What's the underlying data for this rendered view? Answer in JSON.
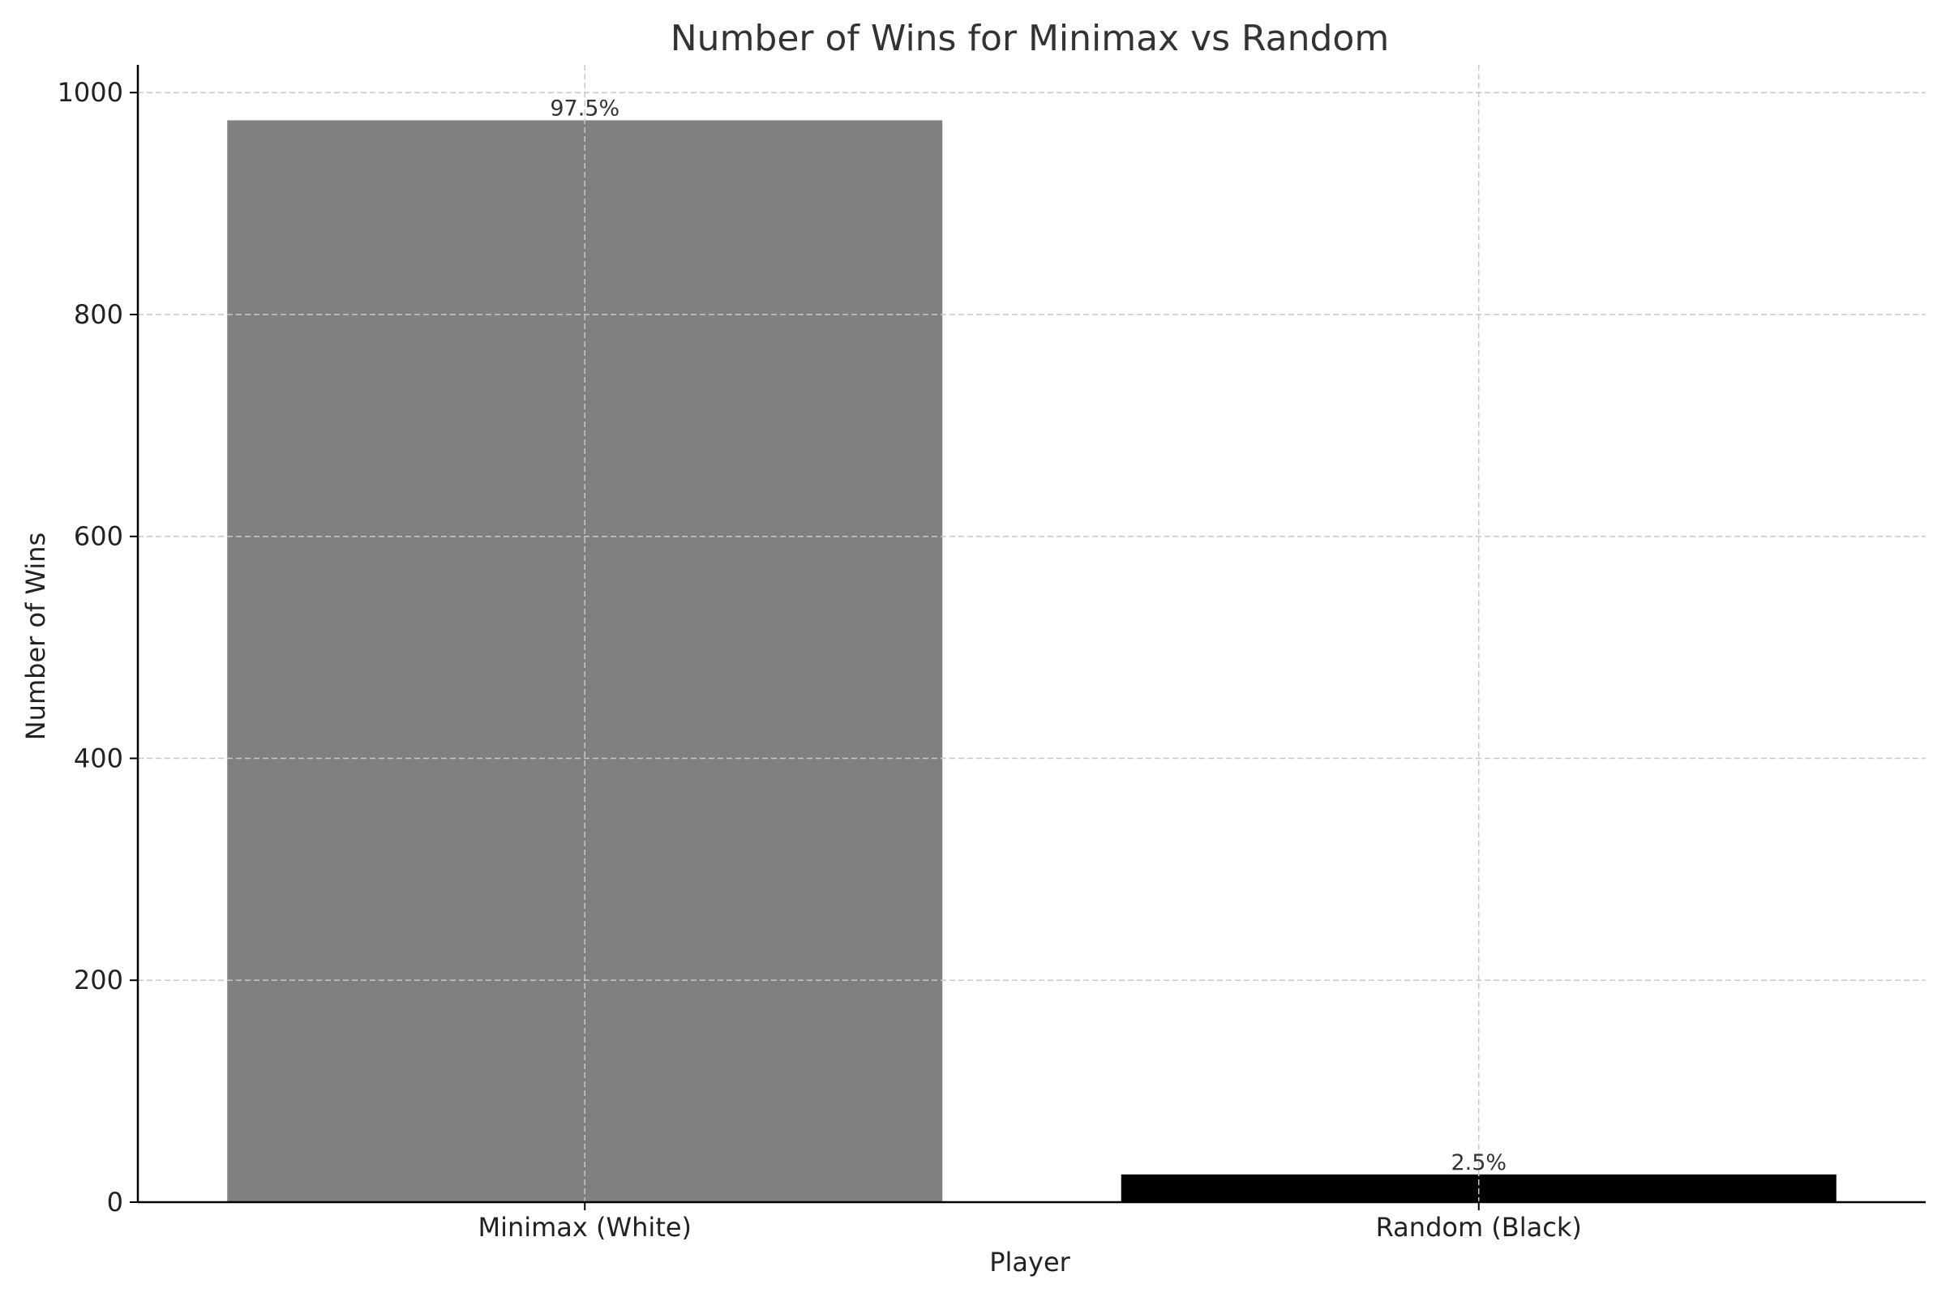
{
  "chart_data": {
    "type": "bar",
    "title": "Number of Wins for Minimax vs Random",
    "xlabel": "Player",
    "ylabel": "Number of Wins",
    "categories": [
      "Minimax (White)",
      "Random (Black)"
    ],
    "values": [
      975,
      25
    ],
    "data_labels": [
      "97.5%",
      "2.5%"
    ],
    "colors": [
      "#808080",
      "#000000"
    ],
    "ylim": [
      0,
      1025
    ],
    "yticks": [
      0,
      200,
      400,
      600,
      800,
      1000
    ],
    "grid": true
  }
}
